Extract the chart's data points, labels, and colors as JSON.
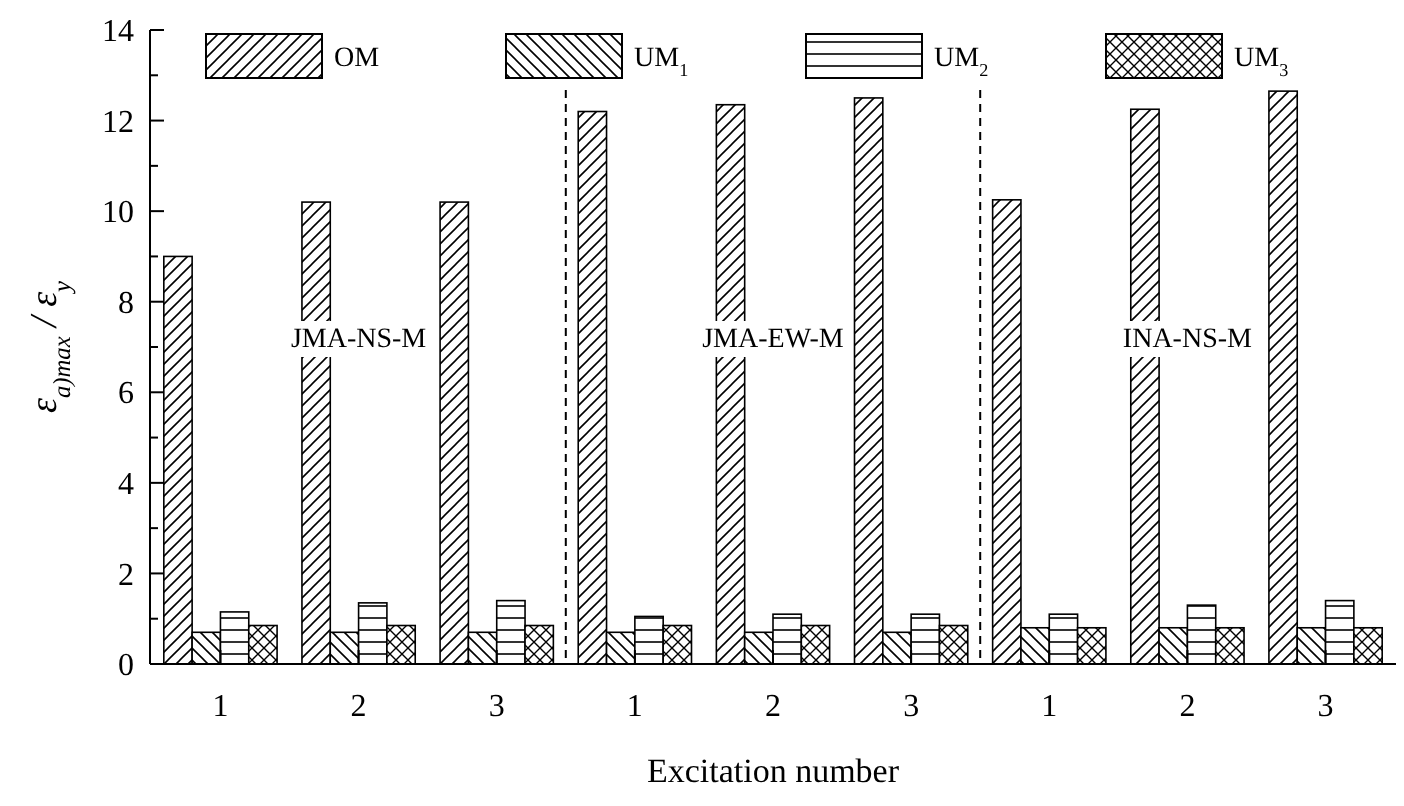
{
  "chart_data": {
    "type": "bar",
    "xlabel": "Excitation number",
    "ylabel": "ε$_{a)max}$ / ε$_{y}$",
    "categories": [
      "1",
      "2",
      "3",
      "1",
      "2",
      "3",
      "1",
      "2",
      "3"
    ],
    "series": [
      {
        "name": "OM",
        "color": "#000000",
        "values": [
          9.0,
          10.2,
          10.2,
          12.2,
          12.35,
          12.5,
          10.25,
          12.25,
          12.65
        ]
      },
      {
        "name": "UM$_{1}$",
        "color": "#000000",
        "values": [
          0.7,
          0.7,
          0.7,
          0.7,
          0.7,
          0.7,
          0.8,
          0.8,
          0.8
        ]
      },
      {
        "name": "UM$_{2}$",
        "color": "#000000",
        "values": [
          1.15,
          1.35,
          1.4,
          1.05,
          1.1,
          1.1,
          1.1,
          1.3,
          1.4
        ]
      },
      {
        "name": "UM$_{3}$",
        "color": "#000000",
        "values": [
          0.85,
          0.85,
          0.85,
          0.85,
          0.85,
          0.85,
          0.8,
          0.8,
          0.8
        ]
      }
    ],
    "ylim": [
      0,
      14
    ],
    "yticks": [
      0,
      {
        "value": 1,
        "label": null
      },
      2,
      {
        "value": 3,
        "label": null
      },
      4,
      {
        "value": 5,
        "label": null
      },
      6,
      {
        "value": 7,
        "label": null
      },
      8,
      {
        "value": 9,
        "label": null
      },
      10,
      {
        "value": 11,
        "label": null
      },
      12,
      {
        "value": 13,
        "label": null
      },
      14
    ],
    "annotations": [
      "JMA-NS-M",
      "JMA-EW-M",
      "INA-NS-M"
    ],
    "legend": "top",
    "grid": false
  }
}
